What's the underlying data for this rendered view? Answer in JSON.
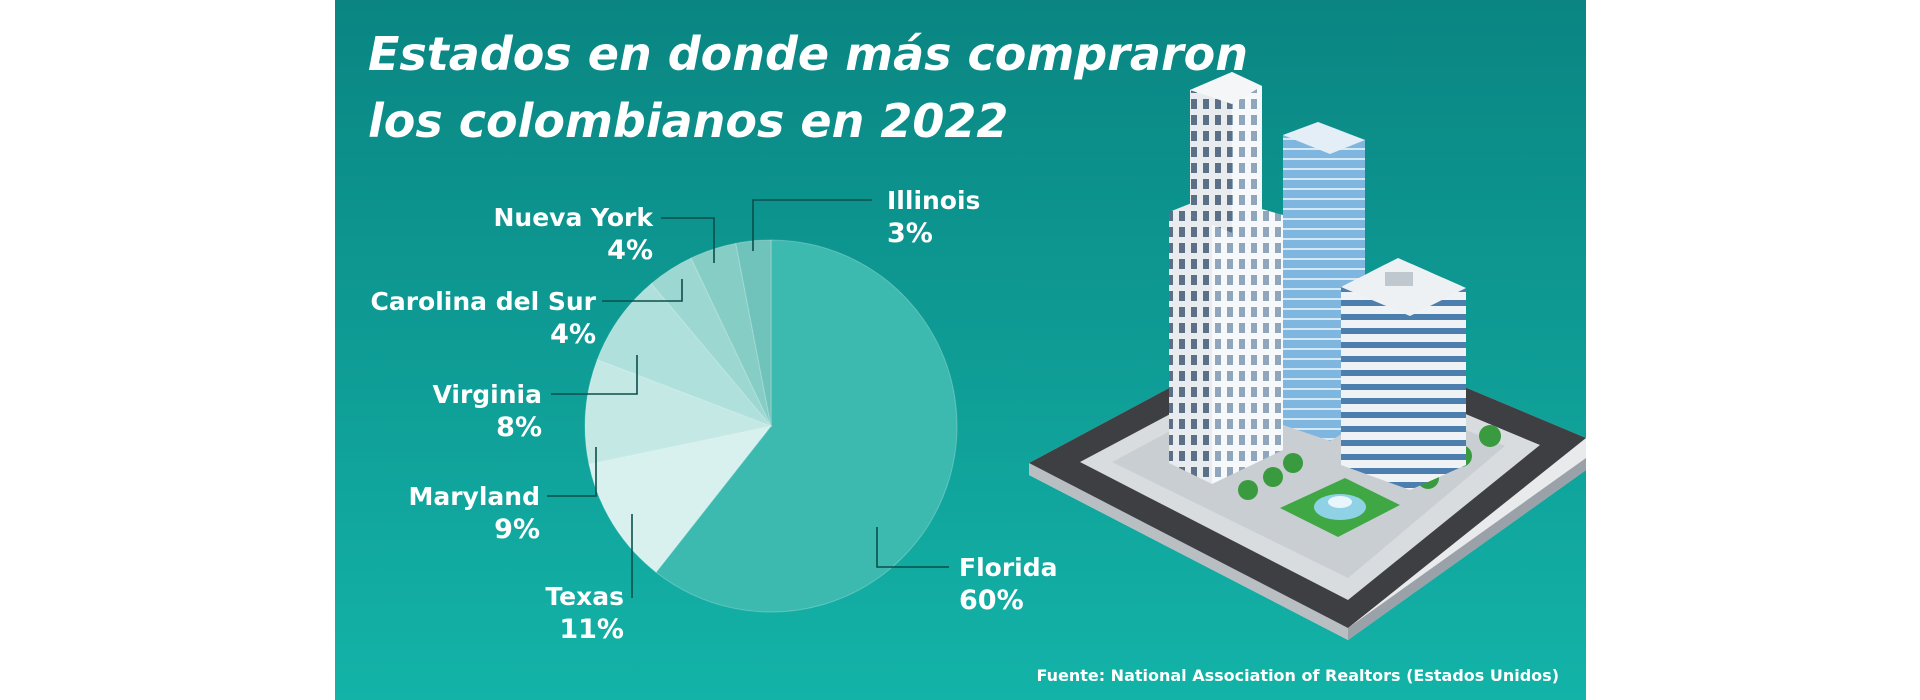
{
  "chart_data": {
    "type": "pie",
    "title": [
      "Estados en donde más compraron",
      "los colombianos en 2022"
    ],
    "categories": [
      "Florida",
      "Texas",
      "Maryland",
      "Virginia",
      "Carolina del Sur",
      "Nueva York",
      "Illinois"
    ],
    "values": [
      60,
      11,
      9,
      8,
      4,
      4,
      3
    ],
    "value_labels": [
      "60%",
      "11%",
      "9%",
      "8%",
      "4%",
      "4%",
      "3%"
    ],
    "colors": [
      "#3dbab0",
      "#d8f1ee",
      "#c4e9e5",
      "#b0e0db",
      "#9cd7d1",
      "#86cdc6",
      "#6fc3bb"
    ],
    "source": "Fuente: National Association of Realtors (Estados Unidos)"
  }
}
